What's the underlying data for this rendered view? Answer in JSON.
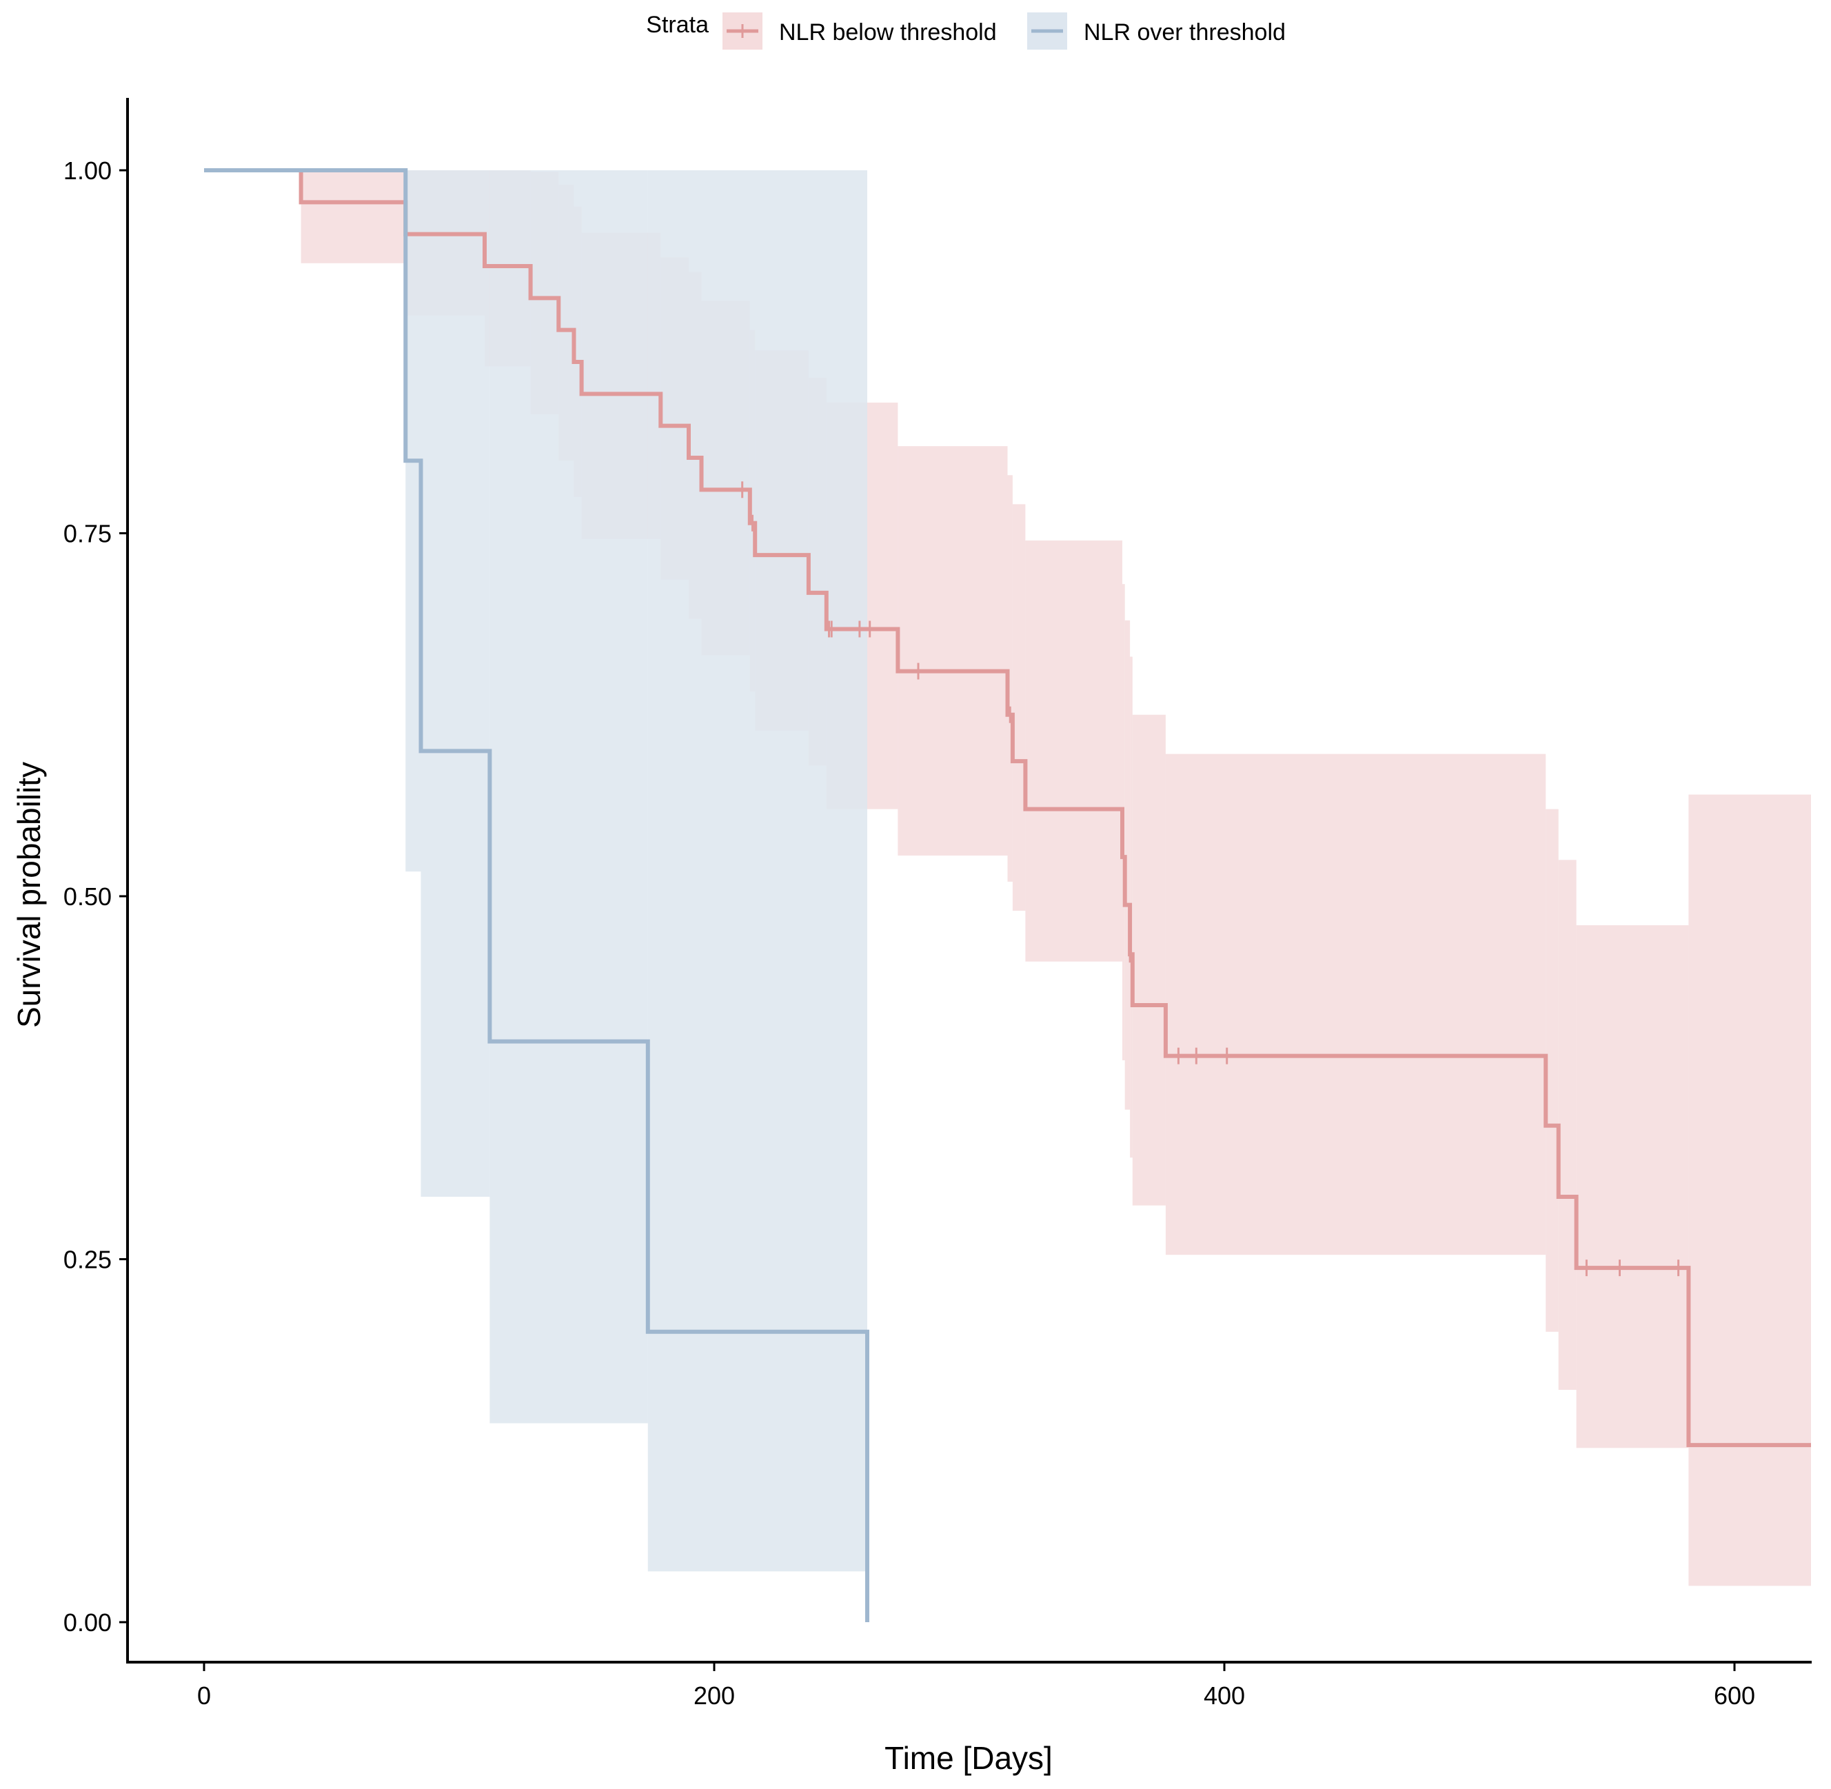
{
  "chart_data": {
    "type": "line",
    "subtype": "kaplan-meier step",
    "title": "",
    "xlabel": "Time [Days]",
    "ylabel": "Survival probability",
    "xlim": [
      -15,
      630
    ],
    "ylim": [
      -0.05,
      1.05
    ],
    "x_ticks": [
      0,
      200,
      400,
      600
    ],
    "x_tick_labels": [
      "0",
      "200",
      "400",
      "600"
    ],
    "y_ticks": [
      0,
      0.25,
      0.5,
      0.75,
      1.0
    ],
    "y_tick_labels": [
      "0.00",
      "0.25",
      "0.50",
      "0.75",
      "1.00"
    ],
    "grid": false,
    "legend": {
      "position": "top",
      "title": "Strata",
      "entries": [
        "NLR below threshold",
        "NLR over threshold"
      ]
    },
    "series": [
      {
        "name": "NLR below threshold",
        "color": "#e09a9a",
        "fill": "#f5dcdd",
        "steps": [
          {
            "x": 0,
            "y": 1.0,
            "lo": 1.0,
            "hi": 1.0
          },
          {
            "x": 38,
            "y": 0.978,
            "lo": 0.936,
            "hi": 1.0
          },
          {
            "x": 79,
            "y": 0.956,
            "lo": 0.9,
            "hi": 1.0
          },
          {
            "x": 110,
            "y": 0.934,
            "lo": 0.865,
            "hi": 1.0
          },
          {
            "x": 128,
            "y": 0.912,
            "lo": 0.832,
            "hi": 0.999
          },
          {
            "x": 139,
            "y": 0.89,
            "lo": 0.8,
            "hi": 0.99
          },
          {
            "x": 145,
            "y": 0.868,
            "lo": 0.775,
            "hi": 0.975
          },
          {
            "x": 148,
            "y": 0.846,
            "lo": 0.746,
            "hi": 0.957
          },
          {
            "x": 179,
            "y": 0.824,
            "lo": 0.718,
            "hi": 0.94
          },
          {
            "x": 190,
            "y": 0.802,
            "lo": 0.691,
            "hi": 0.93
          },
          {
            "x": 195,
            "y": 0.78,
            "lo": 0.666,
            "hi": 0.91
          },
          {
            "x": 214,
            "y": 0.757,
            "lo": 0.641,
            "hi": 0.89
          },
          {
            "x": 216,
            "y": 0.735,
            "lo": 0.614,
            "hi": 0.876
          },
          {
            "x": 237,
            "y": 0.709,
            "lo": 0.59,
            "hi": 0.857
          },
          {
            "x": 244,
            "y": 0.684,
            "lo": 0.56,
            "hi": 0.84
          },
          {
            "x": 272,
            "y": 0.655,
            "lo": 0.528,
            "hi": 0.81
          },
          {
            "x": 315,
            "y": 0.625,
            "lo": 0.51,
            "hi": 0.79
          },
          {
            "x": 317,
            "y": 0.593,
            "lo": 0.49,
            "hi": 0.77
          },
          {
            "x": 322,
            "y": 0.56,
            "lo": 0.455,
            "hi": 0.745
          },
          {
            "x": 360,
            "y": 0.527,
            "lo": 0.387,
            "hi": 0.715
          },
          {
            "x": 361,
            "y": 0.494,
            "lo": 0.353,
            "hi": 0.69
          },
          {
            "x": 363,
            "y": 0.46,
            "lo": 0.32,
            "hi": 0.665
          },
          {
            "x": 364,
            "y": 0.425,
            "lo": 0.287,
            "hi": 0.625
          },
          {
            "x": 377,
            "y": 0.39,
            "lo": 0.253,
            "hi": 0.598
          },
          {
            "x": 526,
            "y": 0.342,
            "lo": 0.2,
            "hi": 0.56
          },
          {
            "x": 531,
            "y": 0.293,
            "lo": 0.16,
            "hi": 0.525
          },
          {
            "x": 538,
            "y": 0.244,
            "lo": 0.12,
            "hi": 0.48
          },
          {
            "x": 582,
            "y": 0.122,
            "lo": 0.025,
            "hi": 0.57
          }
        ],
        "end_x": 630,
        "censored": [
          {
            "x": 211,
            "y": 0.78
          },
          {
            "x": 215,
            "y": 0.757
          },
          {
            "x": 245,
            "y": 0.684
          },
          {
            "x": 246,
            "y": 0.684
          },
          {
            "x": 257,
            "y": 0.684
          },
          {
            "x": 261,
            "y": 0.684
          },
          {
            "x": 280,
            "y": 0.655
          },
          {
            "x": 316,
            "y": 0.625
          },
          {
            "x": 363,
            "y": 0.46
          },
          {
            "x": 382,
            "y": 0.39
          },
          {
            "x": 389,
            "y": 0.39
          },
          {
            "x": 401,
            "y": 0.39
          },
          {
            "x": 542,
            "y": 0.244
          },
          {
            "x": 555,
            "y": 0.244
          },
          {
            "x": 578,
            "y": 0.244
          }
        ]
      },
      {
        "name": "NLR over threshold",
        "color": "#9fb7cf",
        "fill": "#dde6ef",
        "steps": [
          {
            "x": 0,
            "y": 1.0,
            "lo": 1.0,
            "hi": 1.0
          },
          {
            "x": 79,
            "y": 0.8,
            "lo": 0.517,
            "hi": 1.0
          },
          {
            "x": 85,
            "y": 0.6,
            "lo": 0.293,
            "hi": 1.0
          },
          {
            "x": 112,
            "y": 0.4,
            "lo": 0.137,
            "hi": 1.0
          },
          {
            "x": 174,
            "y": 0.2,
            "lo": 0.035,
            "hi": 1.0
          },
          {
            "x": 260,
            "y": 0.0,
            "lo": 0.0,
            "hi": 0.0
          }
        ],
        "end_x": 260,
        "censored": []
      }
    ]
  }
}
